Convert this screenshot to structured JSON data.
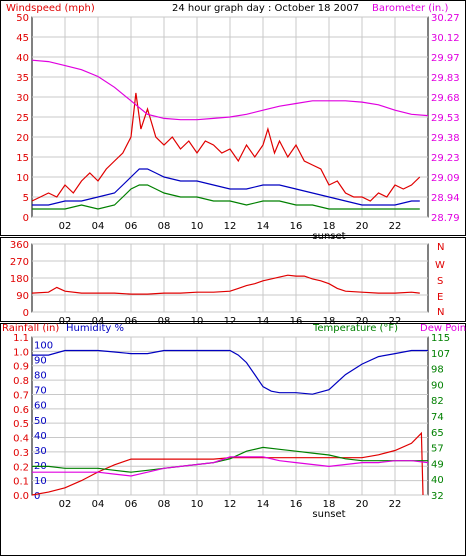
{
  "header": {
    "windspeed_label": "Windspeed (mph)",
    "title": "24 hour graph day : October 18 2007",
    "barometer_label": "Barometer (in.)"
  },
  "middle": {
    "compass_labels": [
      "N",
      "W",
      "S",
      "E",
      "N"
    ]
  },
  "bottom": {
    "rainfall_label": "Rainfall (in)",
    "humidity_label": "Humidity %",
    "temperature_label": "Temperature (°F)",
    "dewpoint_label": "Dew Point"
  },
  "colors": {
    "windspeed": "#e00000",
    "avgwind": "#0000c0",
    "gust": "#008000",
    "barometer": "#e000e0",
    "direction": "#e00000",
    "humidity": "#0000c0",
    "temperature": "#008000",
    "dewpoint": "#e000e0",
    "rain": "#e00000",
    "grid": "#c8c8c8"
  },
  "chart_data": [
    {
      "type": "line",
      "title": "24 hour graph day : October 18 2007",
      "xlabel": "",
      "x_ticks": [
        "02",
        "04",
        "06",
        "08",
        "10",
        "12",
        "14",
        "16",
        "18",
        "20",
        "22"
      ],
      "x_annotation": "sunset",
      "xlim": [
        0,
        24
      ],
      "ylabel_left": "Windspeed (mph)",
      "ylim_left": [
        0,
        50
      ],
      "yticks_left": [
        0,
        5,
        10,
        15,
        20,
        25,
        30,
        35,
        40,
        45,
        50
      ],
      "ylabel_right": "Barometer (in.)",
      "ylim_right": [
        28.79,
        30.27
      ],
      "yticks_right": [
        "28.79",
        "28.94",
        "29.09",
        "29.23",
        "29.38",
        "29.53",
        "29.68",
        "29.83",
        "29.97",
        "30.12",
        "30.27"
      ],
      "grid": true,
      "series": [
        {
          "axis": "left",
          "color": "#e00000",
          "x": [
            0,
            0.5,
            1,
            1.5,
            2,
            2.5,
            3,
            3.5,
            4,
            4.5,
            5,
            5.5,
            6,
            6.3,
            6.6,
            7,
            7.5,
            8,
            8.5,
            9,
            9.5,
            10,
            10.5,
            11,
            11.5,
            12,
            12.5,
            13,
            13.5,
            14,
            14.3,
            14.7,
            15,
            15.5,
            16,
            16.5,
            17,
            17.5,
            18,
            18.5,
            19,
            19.5,
            20,
            20.5,
            21,
            21.5,
            22,
            22.5,
            23,
            23.5
          ],
          "y": [
            4,
            5,
            6,
            5,
            8,
            6,
            9,
            11,
            9,
            12,
            14,
            16,
            20,
            31,
            22,
            27,
            20,
            18,
            20,
            17,
            19,
            16,
            19,
            18,
            16,
            17,
            14,
            18,
            15,
            18,
            22,
            16,
            19,
            15,
            18,
            14,
            13,
            12,
            8,
            9,
            6,
            5,
            5,
            4,
            6,
            5,
            8,
            7,
            8,
            10
          ]
        },
        {
          "axis": "left",
          "color": "#0000c0",
          "x": [
            0,
            1,
            2,
            3,
            4,
            5,
            5.5,
            6,
            6.5,
            7,
            7.5,
            8,
            9,
            10,
            11,
            12,
            13,
            14,
            15,
            16,
            17,
            18,
            19,
            20,
            21,
            22,
            23,
            23.5
          ],
          "y": [
            3,
            3,
            4,
            4,
            5,
            6,
            8,
            10,
            12,
            12,
            11,
            10,
            9,
            9,
            8,
            7,
            7,
            8,
            8,
            7,
            6,
            5,
            4,
            3,
            3,
            3,
            4,
            4
          ]
        },
        {
          "axis": "left",
          "color": "#008000",
          "x": [
            0,
            1,
            2,
            3,
            4,
            5,
            5.5,
            6,
            6.5,
            7,
            7.5,
            8,
            9,
            10,
            11,
            12,
            13,
            14,
            15,
            16,
            17,
            18,
            19,
            20,
            21,
            22,
            23,
            23.5
          ],
          "y": [
            2,
            2,
            2,
            3,
            2,
            3,
            5,
            7,
            8,
            8,
            7,
            6,
            5,
            5,
            4,
            4,
            3,
            4,
            4,
            3,
            3,
            2,
            2,
            2,
            2,
            2,
            2,
            2
          ]
        },
        {
          "axis": "right",
          "color": "#e000e0",
          "x": [
            0,
            1,
            2,
            3,
            4,
            5,
            6,
            7,
            8,
            9,
            10,
            11,
            12,
            13,
            14,
            15,
            16,
            17,
            18,
            19,
            20,
            21,
            22,
            23,
            24
          ],
          "y": [
            29.95,
            29.94,
            29.91,
            29.88,
            29.83,
            29.75,
            29.65,
            29.55,
            29.52,
            29.51,
            29.51,
            29.52,
            29.53,
            29.55,
            29.58,
            29.61,
            29.63,
            29.65,
            29.65,
            29.65,
            29.64,
            29.62,
            29.58,
            29.55,
            29.54
          ]
        }
      ]
    },
    {
      "type": "line",
      "title": "",
      "x_ticks": [
        "02",
        "04",
        "06",
        "08",
        "10",
        "12",
        "14",
        "16",
        "18",
        "20",
        "22"
      ],
      "x_annotation": "",
      "xlim": [
        0,
        24
      ],
      "ylabel_left": "",
      "ylim_left": [
        0,
        360
      ],
      "yticks_left": [
        0,
        90,
        180,
        270,
        360
      ],
      "right_labels": [
        "N",
        "W",
        "S",
        "E",
        "N"
      ],
      "grid": true,
      "series": [
        {
          "axis": "left",
          "color": "#e00000",
          "x": [
            0,
            1,
            1.5,
            2,
            3,
            4,
            5,
            6,
            7,
            8,
            9,
            10,
            11,
            12,
            12.5,
            13,
            13.5,
            14,
            14.5,
            15,
            15.5,
            16,
            16.5,
            17,
            17.5,
            18,
            18.5,
            19,
            20,
            21,
            22,
            23,
            23.5
          ],
          "y": [
            100,
            105,
            130,
            110,
            100,
            100,
            100,
            95,
            95,
            100,
            100,
            105,
            105,
            110,
            125,
            140,
            150,
            165,
            175,
            185,
            195,
            190,
            190,
            175,
            165,
            150,
            125,
            110,
            105,
            100,
            100,
            105,
            100
          ]
        }
      ]
    },
    {
      "type": "line",
      "title": "",
      "x_ticks": [
        "02",
        "04",
        "06",
        "08",
        "10",
        "12",
        "14",
        "16",
        "18",
        "20",
        "22"
      ],
      "x_annotation": "sunset",
      "xlim": [
        0,
        24
      ],
      "ylabel_left": "Rainfall (in)",
      "ylim_left": [
        0,
        1.1
      ],
      "yticks_left": [
        "0.0",
        "0.1",
        "0.2",
        "0.3",
        "0.4",
        "0.5",
        "0.6",
        "0.7",
        "0.8",
        "0.9",
        "1.0",
        "1.1"
      ],
      "yticks_humidity": [
        0,
        10,
        20,
        30,
        40,
        50,
        60,
        70,
        80,
        90,
        100
      ],
      "ylabel_right": "Temperature (°F)",
      "ylim_right": [
        32,
        115
      ],
      "yticks_right": [
        32,
        40,
        49,
        57,
        65,
        74,
        82,
        90,
        98,
        107,
        115
      ],
      "grid": true,
      "series": [
        {
          "axis": "humidity",
          "color": "#0000c0",
          "x": [
            0,
            1,
            2,
            3,
            4,
            5,
            6,
            7,
            8,
            9,
            10,
            11,
            12,
            12.5,
            13,
            13.5,
            14,
            14.5,
            15,
            16,
            17,
            18,
            18.5,
            19,
            20,
            21,
            22,
            23,
            24
          ],
          "y": [
            93,
            93,
            96,
            96,
            96,
            95,
            94,
            94,
            96,
            96,
            96,
            96,
            96,
            93,
            88,
            80,
            72,
            69,
            68,
            68,
            67,
            70,
            75,
            80,
            87,
            92,
            94,
            96,
            96
          ]
        },
        {
          "axis": "left",
          "color": "#e00000",
          "x": [
            0,
            1,
            2,
            3,
            4,
            5,
            6,
            7,
            8,
            9,
            10,
            11,
            12,
            13,
            14,
            15,
            16,
            17,
            18,
            19,
            20,
            21,
            22,
            23,
            23.6,
            23.7
          ],
          "y": [
            0.0,
            0.02,
            0.05,
            0.1,
            0.16,
            0.21,
            0.25,
            0.25,
            0.25,
            0.25,
            0.25,
            0.25,
            0.26,
            0.26,
            0.26,
            0.26,
            0.26,
            0.26,
            0.26,
            0.26,
            0.26,
            0.28,
            0.31,
            0.36,
            0.43,
            0.0
          ]
        },
        {
          "axis": "right",
          "color": "#008000",
          "x": [
            0,
            1,
            2,
            3,
            4,
            5,
            6,
            7,
            8,
            9,
            10,
            11,
            12,
            13,
            14,
            15,
            16,
            17,
            18,
            19,
            20,
            21,
            22,
            23,
            24
          ],
          "y": [
            47,
            47,
            46,
            46,
            46,
            45,
            44,
            45,
            46,
            47,
            48,
            49,
            51,
            55,
            57,
            56,
            55,
            54,
            53,
            51,
            50,
            50,
            50,
            50,
            50
          ]
        },
        {
          "axis": "right",
          "color": "#e000e0",
          "x": [
            0,
            1,
            2,
            3,
            4,
            5,
            6,
            7,
            8,
            9,
            10,
            11,
            12,
            13,
            14,
            15,
            16,
            17,
            18,
            19,
            20,
            21,
            22,
            23,
            24
          ],
          "y": [
            44,
            44,
            44,
            44,
            44,
            43,
            42,
            44,
            46,
            47,
            48,
            49,
            52,
            52,
            52,
            50,
            49,
            48,
            47,
            48,
            49,
            49,
            50,
            50,
            49
          ]
        }
      ]
    }
  ]
}
